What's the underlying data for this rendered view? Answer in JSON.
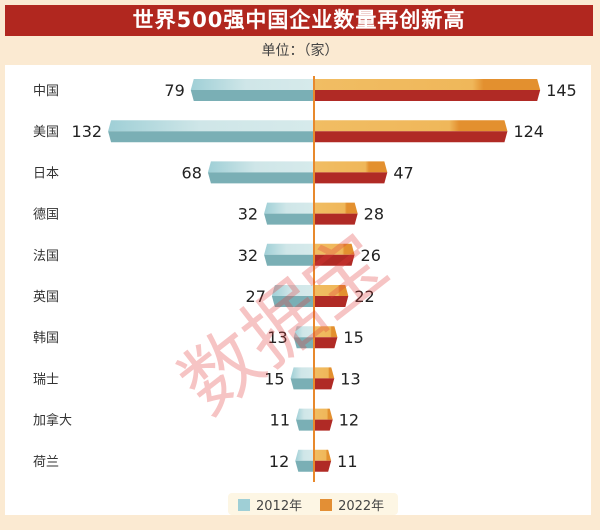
{
  "chart_data": {
    "type": "bar",
    "orientation": "horizontal-butterfly",
    "title": "世界500强中国企业数量再创新高",
    "subtitle": "单位：（家）",
    "categories": [
      "中国",
      "美国",
      "日本",
      "德国",
      "法国",
      "英国",
      "韩国",
      "瑞士",
      "加拿大",
      "荷兰"
    ],
    "series": [
      {
        "name": "2012年",
        "values": [
          79,
          132,
          68,
          32,
          32,
          27,
          13,
          15,
          11,
          12
        ],
        "color": "#9fcfd6",
        "side": "left"
      },
      {
        "name": "2022年",
        "values": [
          145,
          124,
          47,
          28,
          26,
          22,
          15,
          13,
          12,
          11
        ],
        "color": "#e38f35",
        "side": "right"
      }
    ],
    "legend": "bottom-center",
    "grid": false
  },
  "watermark": "数据宝"
}
